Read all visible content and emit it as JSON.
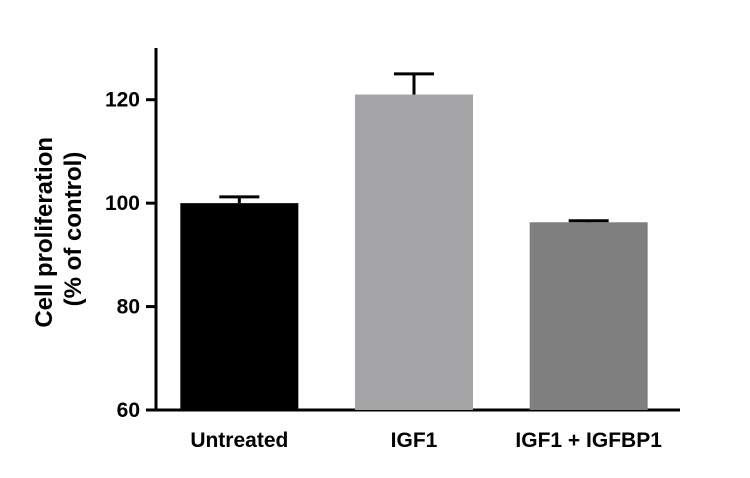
{
  "chart_data": {
    "type": "bar",
    "title": "",
    "ylabel": [
      "Cell proliferation",
      "(% of control)"
    ],
    "xlabel": "",
    "categories": [
      "Untreated",
      "IGF1",
      "IGF1 + IGFBP1"
    ],
    "values": [
      100,
      121,
      96.3
    ],
    "errors": [
      1.2,
      4,
      0.3
    ],
    "bar_colors": [
      "#000000",
      "#a5a5a8",
      "#7f7f7f"
    ],
    "ylim": [
      60,
      130
    ],
    "yticks": [
      60,
      80,
      100,
      120
    ],
    "ytick_labels": [
      "60",
      "80",
      "100",
      "120"
    ],
    "grid": false,
    "legend": "none"
  }
}
